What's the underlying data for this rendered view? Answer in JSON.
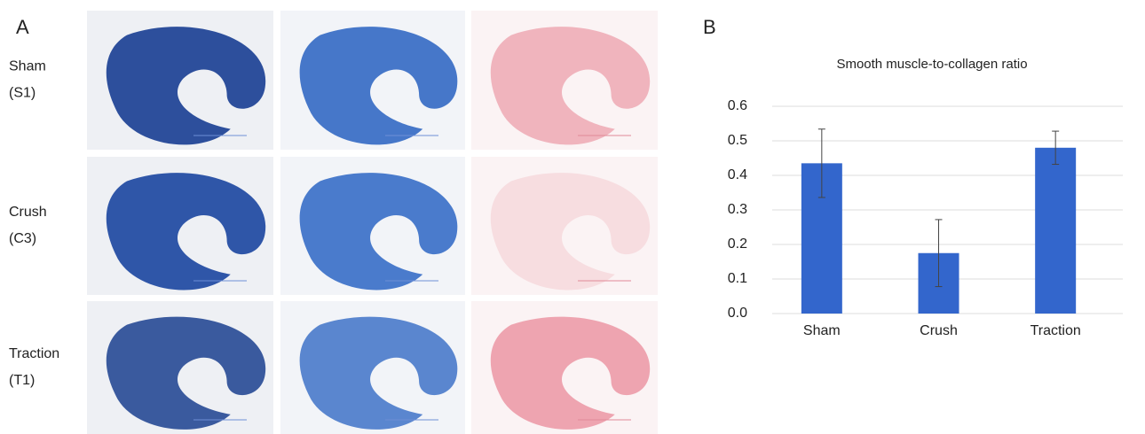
{
  "panel_a": {
    "label": "A",
    "rows": [
      {
        "name": "Sham",
        "id": "(S1)"
      },
      {
        "name": "Crush",
        "id": "(C3)"
      },
      {
        "name": "Traction",
        "id": "(T1)"
      }
    ]
  },
  "panel_b": {
    "label": "B"
  },
  "chart_data": {
    "type": "bar",
    "title": "Smooth muscle-to-collagen ratio",
    "categories": [
      "Sham",
      "Crush",
      "Traction"
    ],
    "values": [
      0.435,
      0.175,
      0.48
    ],
    "errors": [
      0.099,
      0.097,
      0.048
    ],
    "color": "#3366cc",
    "ylim": [
      0,
      0.6
    ],
    "yticks": [
      {
        "value": 0,
        "label": "0.0"
      },
      0.1,
      0.2,
      0.3,
      0.4,
      0.5,
      0.6
    ],
    "grid": true
  }
}
